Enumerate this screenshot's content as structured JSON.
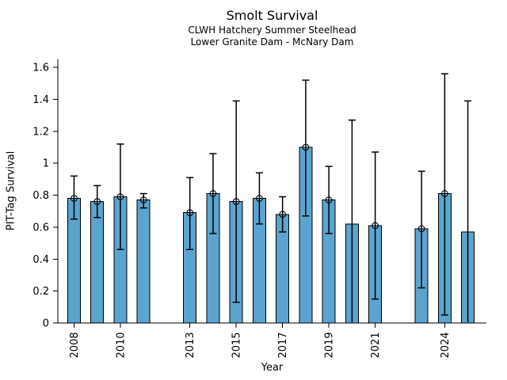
{
  "chart_data": {
    "type": "bar",
    "title": "Smolt Survival",
    "subtitle1": "CLWH Hatchery Summer Steelhead",
    "subtitle2": "Lower Granite Dam - McNary Dam",
    "xlabel": "Year",
    "ylabel": "PIT-Tag Survival",
    "xlim": [
      2007.3,
      2025.8
    ],
    "ylim": [
      0,
      1.65
    ],
    "grid": false,
    "legend": "none",
    "bar_color": "#5BA4CF",
    "bar_edge_color": "#000000",
    "error_color": "#000000",
    "y_ticks": {
      "values": [
        0,
        0.2,
        0.4,
        0.6,
        0.8,
        1,
        1.2,
        1.4,
        1.6
      ],
      "labels": [
        "0",
        "0.2",
        "0.4",
        "0.6",
        "0.8",
        "1",
        "1.2",
        "1.4",
        "1.6"
      ]
    },
    "x_ticks": {
      "values": [
        2008,
        2010,
        2013,
        2015,
        2017,
        2019,
        2021,
        2024
      ],
      "labels": [
        "2008",
        "2010",
        "2013",
        "2015",
        "2017",
        "2019",
        "2021",
        "2024"
      ]
    },
    "bars": [
      {
        "year": 2008,
        "survival": 0.78,
        "ci_low": 0.65,
        "ci_high": 0.92,
        "marker": true,
        "low_cap": true
      },
      {
        "year": 2009,
        "survival": 0.76,
        "ci_low": 0.66,
        "ci_high": 0.86,
        "marker": true,
        "low_cap": true
      },
      {
        "year": 2010,
        "survival": 0.79,
        "ci_low": 0.46,
        "ci_high": 1.12,
        "marker": true,
        "low_cap": true
      },
      {
        "year": 2011,
        "survival": 0.77,
        "ci_low": 0.72,
        "ci_high": 0.81,
        "marker": true,
        "low_cap": true
      },
      {
        "year": 2013,
        "survival": 0.69,
        "ci_low": 0.46,
        "ci_high": 0.91,
        "marker": true,
        "low_cap": true
      },
      {
        "year": 2014,
        "survival": 0.81,
        "ci_low": 0.56,
        "ci_high": 1.06,
        "marker": true,
        "low_cap": true
      },
      {
        "year": 2015,
        "survival": 0.76,
        "ci_low": 0.13,
        "ci_high": 1.39,
        "marker": true,
        "low_cap": true
      },
      {
        "year": 2016,
        "survival": 0.78,
        "ci_low": 0.62,
        "ci_high": 0.94,
        "marker": true,
        "low_cap": true
      },
      {
        "year": 2017,
        "survival": 0.68,
        "ci_low": 0.57,
        "ci_high": 0.79,
        "marker": true,
        "low_cap": true
      },
      {
        "year": 2018,
        "survival": 1.1,
        "ci_low": 0.67,
        "ci_high": 1.52,
        "marker": true,
        "low_cap": true
      },
      {
        "year": 2019,
        "survival": 0.77,
        "ci_low": 0.56,
        "ci_high": 0.98,
        "marker": true,
        "low_cap": true
      },
      {
        "year": 2020,
        "survival": 0.62,
        "ci_low": 0.005,
        "ci_high": 1.27,
        "marker": false,
        "low_cap": false
      },
      {
        "year": 2021,
        "survival": 0.61,
        "ci_low": 0.15,
        "ci_high": 1.07,
        "marker": true,
        "low_cap": true
      },
      {
        "year": 2023,
        "survival": 0.59,
        "ci_low": 0.22,
        "ci_high": 0.95,
        "marker": true,
        "low_cap": true
      },
      {
        "year": 2024,
        "survival": 0.81,
        "ci_low": 0.05,
        "ci_high": 1.56,
        "marker": true,
        "low_cap": true
      },
      {
        "year": 2025,
        "survival": 0.57,
        "ci_low": 0.005,
        "ci_high": 1.39,
        "marker": false,
        "low_cap": false
      }
    ]
  }
}
